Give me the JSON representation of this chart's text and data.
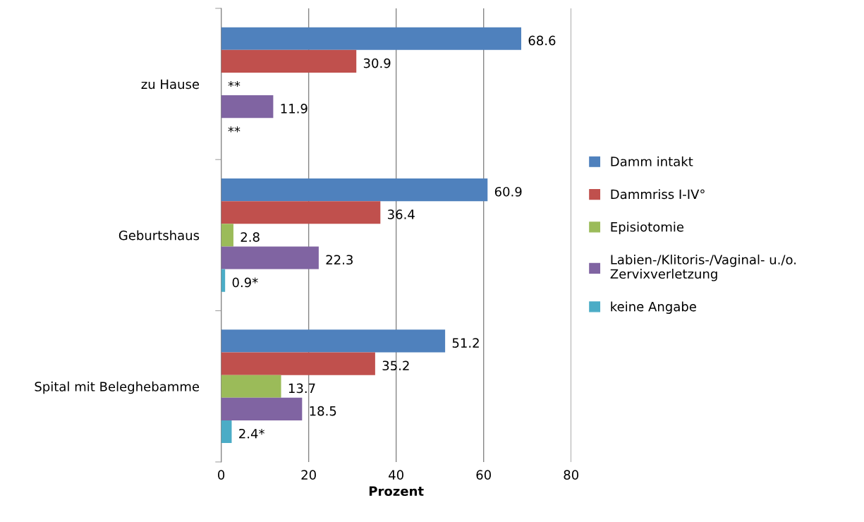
{
  "chart_data": {
    "type": "bar",
    "orientation": "horizontal",
    "xlabel": "Prozent",
    "categories": [
      "zu Hause",
      "Geburtshaus",
      "Spital mit Beleghebamme"
    ],
    "series": [
      {
        "name": "Damm intakt",
        "color": "#4f81bd",
        "values": [
          68.6,
          60.9,
          51.2
        ],
        "value_labels": [
          "68.6",
          "60.9",
          "51.2"
        ]
      },
      {
        "name": "Dammriss I-IV°",
        "color": "#c0504d",
        "values": [
          30.9,
          36.4,
          35.2
        ],
        "value_labels": [
          "30.9",
          "36.4",
          "35.2"
        ]
      },
      {
        "name": "Episiotomie",
        "color": "#9bbb59",
        "values": [
          null,
          2.8,
          13.7
        ],
        "value_labels": [
          "**",
          "2.8",
          "13.7"
        ]
      },
      {
        "name": "Labien-/Klitoris-/Vaginal- u./o.\nZervixverletzung",
        "color": "#8064a2",
        "values": [
          11.9,
          22.3,
          18.5
        ],
        "value_labels": [
          "11.9",
          "22.3",
          "18.5"
        ]
      },
      {
        "name": "keine Angabe",
        "color": "#4bacc6",
        "values": [
          null,
          0.9,
          2.4
        ],
        "value_labels": [
          "**",
          "0.9*",
          "2.4*"
        ]
      }
    ],
    "xlim": [
      0,
      80
    ],
    "xticks": [
      0,
      20,
      40,
      60,
      80
    ],
    "grid": "x",
    "legend": "right"
  }
}
